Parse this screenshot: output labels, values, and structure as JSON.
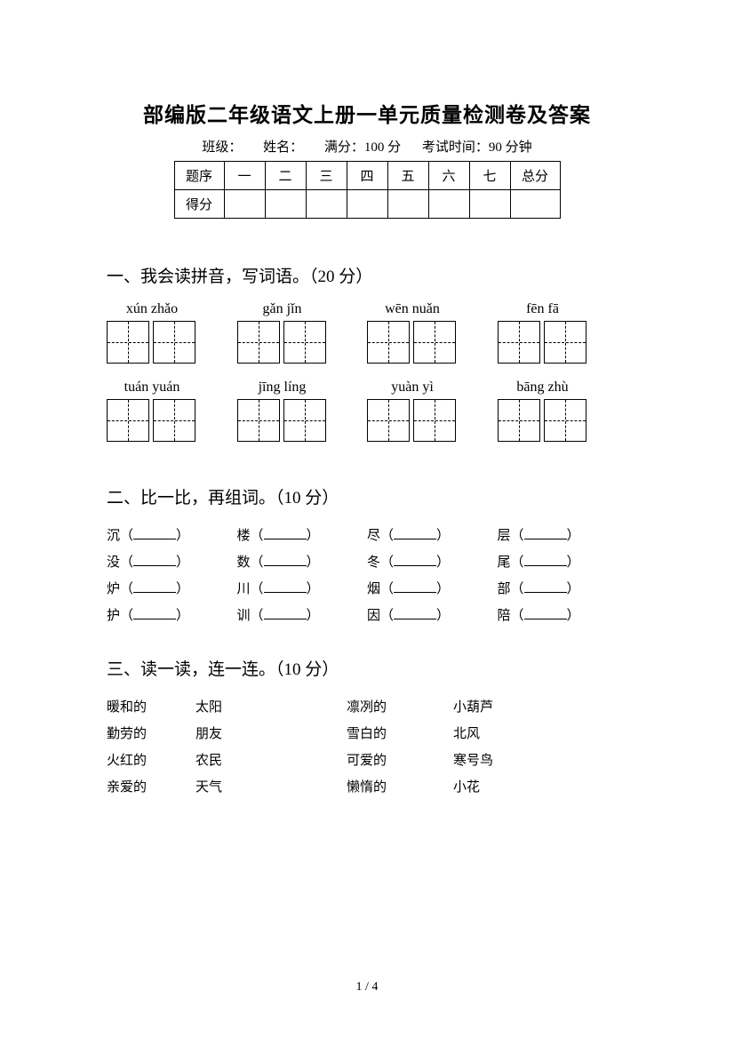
{
  "title": "部编版二年级语文上册一单元质量检测卷及答案",
  "meta": {
    "class_label": "班级：",
    "name_label": "姓名：",
    "full_score": "满分：100 分",
    "time": "考试时间：90 分钟"
  },
  "score_table": {
    "row1_label": "题序",
    "cols": [
      "一",
      "二",
      "三",
      "四",
      "五",
      "六",
      "七"
    ],
    "total_label": "总分",
    "row2_label": "得分"
  },
  "section1": {
    "title": "一、我会读拼音，写词语。（20 分）",
    "pinyin": [
      "xún zhǎo",
      "gǎn jǐn",
      "wēn nuǎn",
      "fēn fā",
      "tuán yuán",
      "jīng líng",
      "yuàn yì",
      "bāng zhù"
    ]
  },
  "section2": {
    "title": "二、比一比，再组词。（10 分）",
    "rows": [
      [
        "沉",
        "楼",
        "尽",
        "层"
      ],
      [
        "没",
        "数",
        "冬",
        "尾"
      ],
      [
        "炉",
        "川",
        "烟",
        "部"
      ],
      [
        "护",
        "训",
        "因",
        "陪"
      ]
    ]
  },
  "section3": {
    "title": "三、读一读，连一连。（10 分）",
    "rows": [
      [
        "暖和的",
        "太阳",
        "凛冽的",
        "小葫芦"
      ],
      [
        "勤劳的",
        "朋友",
        "雪白的",
        "北风"
      ],
      [
        "火红的",
        "农民",
        "可爱的",
        "寒号鸟"
      ],
      [
        "亲爱的",
        "天气",
        "懒惰的",
        "小花"
      ]
    ]
  },
  "footer": "1 / 4"
}
